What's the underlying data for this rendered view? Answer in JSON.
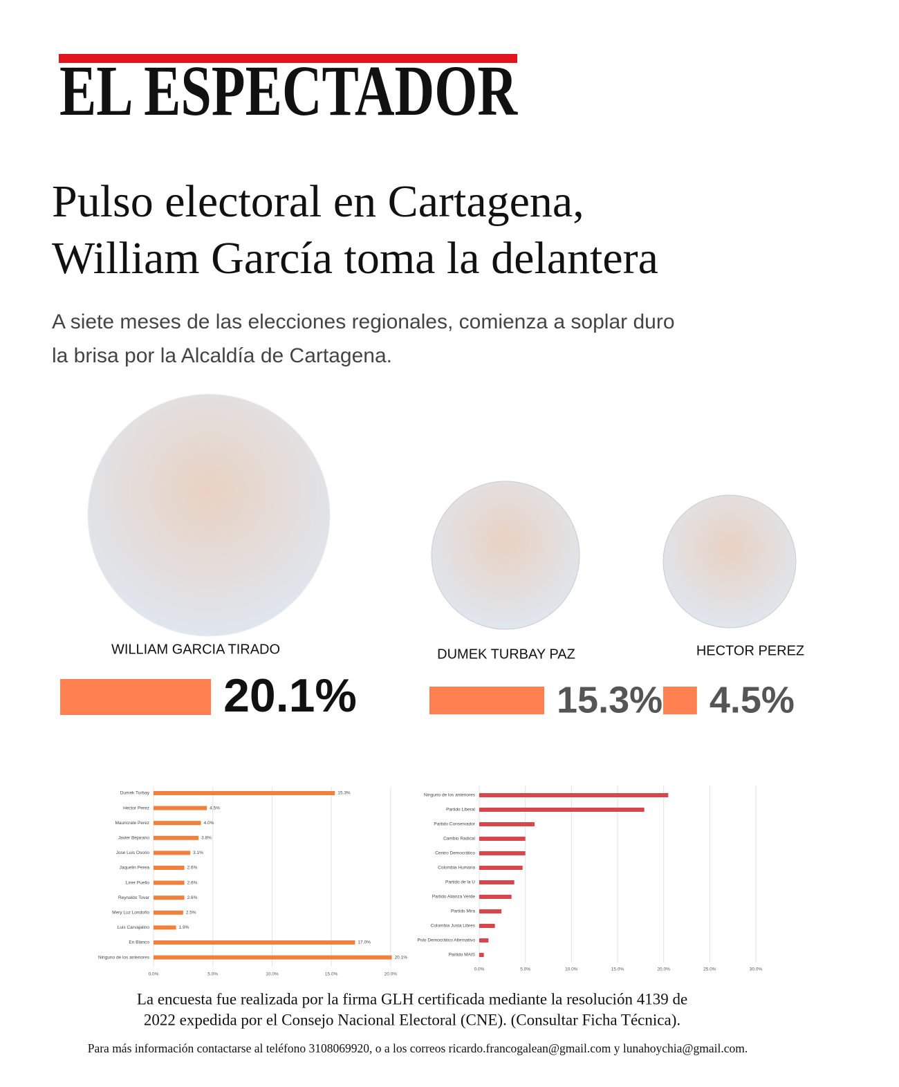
{
  "header": {
    "logo": "EL ESPECTADOR",
    "headline": [
      "Pulso electoral en Cartagena,",
      "William García toma la delantera"
    ],
    "subtitle": [
      "A siete meses de las elecciones regionales, comienza a soplar duro",
      "la brisa por la Alcaldía de Cartagena."
    ]
  },
  "chart_data": [
    {
      "type": "bar",
      "categories": [
        "WILLIAM GARCIA TIRADO",
        "DUMEK TURBAY PAZ",
        "HECTOR PEREZ"
      ],
      "values": [
        20.1,
        15.3,
        4.5
      ],
      "value_labels": [
        "20.1%",
        "15.3%",
        "4.5%"
      ],
      "color": "#ff8050"
    },
    {
      "type": "hbar",
      "categories": [
        "Dumek Turbay",
        "Hector Perez",
        "Mauricrate Perez",
        "Javier Bejarano",
        "Jose Luis Osorio",
        "Jaquelin Perea",
        "Liner Puello",
        "Reynaldo Tovar",
        "Mery Luz Londoño",
        "Luis Carvajalino",
        "En Blanco",
        "Ninguno de los anteriores"
      ],
      "values": [
        15.3,
        4.5,
        4.0,
        3.8,
        3.1,
        2.6,
        2.6,
        2.6,
        2.5,
        1.9,
        17.0,
        20.1
      ],
      "value_labels": [
        "15.3%",
        "4.5%",
        "4.0%",
        "3.8%",
        "3.1%",
        "2.6%",
        "2.6%",
        "2.6%",
        "2.5%",
        "1.9%",
        "17.0%",
        "20.1%"
      ],
      "color": "#f0803c",
      "xlim": [
        0,
        21
      ],
      "xticks": [
        {
          "value": 0,
          "label": "0.0%"
        },
        {
          "value": 5,
          "label": "5.0%"
        },
        {
          "value": 10,
          "label": "10.0%"
        },
        {
          "value": 15,
          "label": "15.0%"
        },
        {
          "value": 20,
          "label": "20.0%"
        }
      ],
      "grid": true
    },
    {
      "type": "hbar",
      "categories": [
        "Ninguno de los anteriores",
        "Partido Liberal",
        "Partido Conservador",
        "Cambio Radical",
        "Centro Democrático",
        "Colombia Humana",
        "Partido de la U",
        "Partido Alianza Verde",
        "Partido Mira",
        "Colombia Justa Libres",
        "Polo Democrático Alternativo",
        "Partido MAIS"
      ],
      "values": [
        20.5,
        17.9,
        6.0,
        5.0,
        5.0,
        4.7,
        3.8,
        3.5,
        2.4,
        1.7,
        1.0,
        0.5
      ],
      "color": "#d9454a",
      "xlim": [
        0,
        30
      ],
      "xticks": [
        {
          "value": 0,
          "label": "0.0%"
        },
        {
          "value": 5,
          "label": "5.0%"
        },
        {
          "value": 10,
          "label": "10.0%"
        },
        {
          "value": 15,
          "label": "15.0%"
        },
        {
          "value": 20,
          "label": "20.0%"
        },
        {
          "value": 25,
          "label": "25.0%"
        },
        {
          "value": 30,
          "label": "30.0%"
        }
      ],
      "grid": true
    }
  ],
  "footer": {
    "note": [
      "La encuesta fue realizada por la firma GLH certificada mediante la resolución 4139 de",
      "2022 expedida por el Consejo Nacional Electoral (CNE). (Consultar Ficha Técnica)."
    ],
    "contact": "Para más información contactarse al teléfono 3108069920, o a los correos ricardo.francogalean@gmail.com y lunahoychia@gmail.com."
  }
}
